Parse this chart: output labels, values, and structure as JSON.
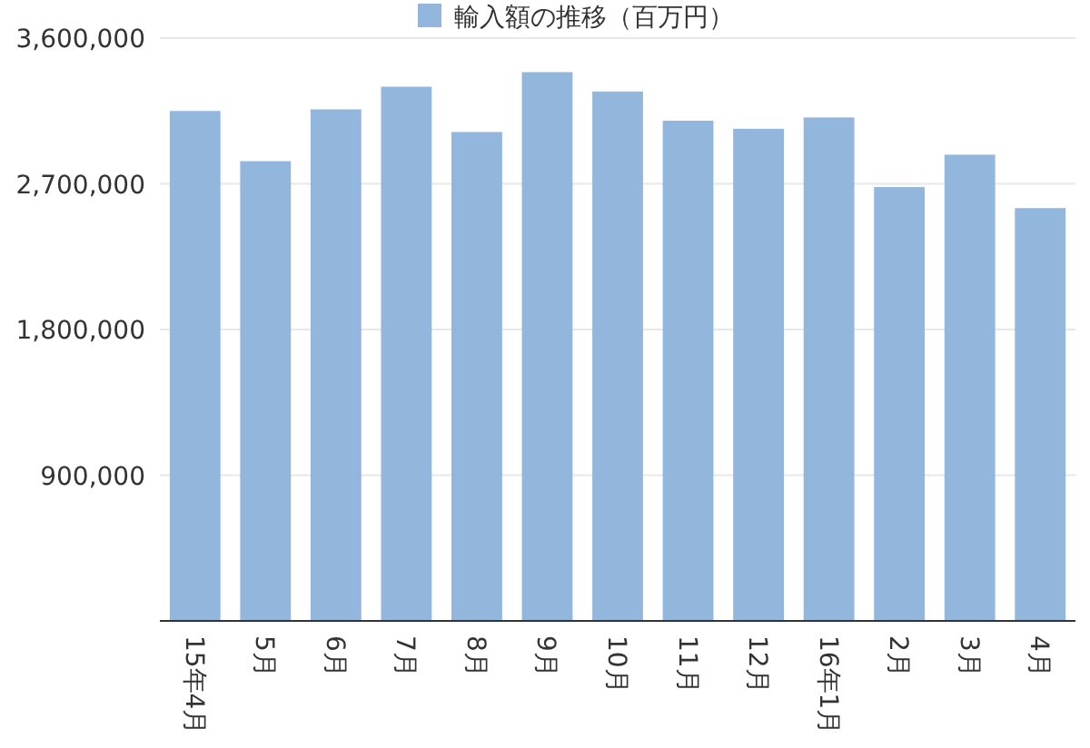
{
  "chart_data": {
    "type": "bar",
    "categories": [
      "15年4月",
      "5月",
      "6月",
      "7月",
      "8月",
      "9月",
      "10月",
      "11月",
      "12月",
      "16年1月",
      "2月",
      "3月",
      "4月"
    ],
    "series": [
      {
        "name": "輸入額の推移（百万円）",
        "color": "#93b7dc",
        "values": [
          3150000,
          2840000,
          3160000,
          3300000,
          3020000,
          3390000,
          3270000,
          3090000,
          3040000,
          3110000,
          2680000,
          2880000,
          2550000
        ]
      }
    ],
    "ylim": [
      0,
      3600000
    ],
    "yticks": [
      {
        "value": 0,
        "label": null
      },
      {
        "value": 900000,
        "label": "900,000"
      },
      {
        "value": 1800000,
        "label": "1,800,000"
      },
      {
        "value": 2700000,
        "label": "2,700,000"
      },
      {
        "value": 3600000,
        "label": "3,600,000"
      }
    ],
    "grid": "y",
    "legend": "top"
  }
}
